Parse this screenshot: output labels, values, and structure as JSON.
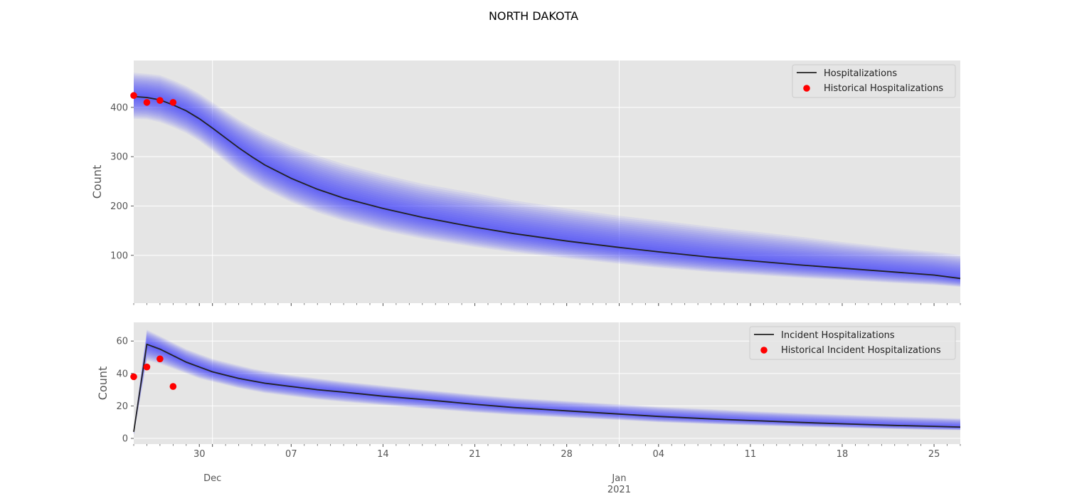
{
  "figure": {
    "suptitle": "NORTH DAKOTA"
  },
  "style": {
    "panel_bg": "#e5e5e5",
    "band_color": "#3333ff",
    "median_color": "#222222",
    "historical_color": "#ff0000",
    "tick_color": "#555555"
  },
  "x_axis": {
    "range": [
      "2020-11-25",
      "2021-01-27"
    ],
    "major_ticks": [
      {
        "date": "2020-11-30",
        "label": "30"
      },
      {
        "date": "2020-12-07",
        "label": "07"
      },
      {
        "date": "2020-12-14",
        "label": "14"
      },
      {
        "date": "2020-12-21",
        "label": "21"
      },
      {
        "date": "2020-12-28",
        "label": "28"
      },
      {
        "date": "2021-01-04",
        "label": "04"
      },
      {
        "date": "2021-01-11",
        "label": "11"
      },
      {
        "date": "2021-01-18",
        "label": "18"
      },
      {
        "date": "2021-01-25",
        "label": "25"
      }
    ],
    "month_labels": [
      {
        "date": "2020-12-01",
        "label": "Dec"
      },
      {
        "date": "2021-01-01",
        "label": "Jan",
        "year": "2021"
      }
    ]
  },
  "chart_data": [
    {
      "type": "line",
      "ylabel": "Count",
      "ylim": [
        3,
        495
      ],
      "yticks": [
        100,
        200,
        300,
        400
      ],
      "grid": true,
      "legend_position": "top-right",
      "legend": [
        "Hospitalizations",
        "Historical Hospitalizations"
      ],
      "x": [
        "2020-11-25",
        "2020-11-26",
        "2020-11-27",
        "2020-11-28",
        "2020-11-29",
        "2020-11-30",
        "2020-12-01",
        "2020-12-02",
        "2020-12-03",
        "2020-12-04",
        "2020-12-05",
        "2020-12-07",
        "2020-12-09",
        "2020-12-11",
        "2020-12-14",
        "2020-12-17",
        "2020-12-21",
        "2020-12-24",
        "2020-12-28",
        "2021-01-01",
        "2021-01-04",
        "2021-01-08",
        "2021-01-11",
        "2021-01-15",
        "2021-01-18",
        "2021-01-22",
        "2021-01-25",
        "2021-01-27"
      ],
      "series": [
        {
          "name": "Hospitalizations",
          "values": [
            422,
            420,
            415,
            405,
            393,
            377,
            358,
            338,
            318,
            300,
            283,
            256,
            234,
            216,
            195,
            177,
            157,
            144,
            129,
            116,
            107,
            96,
            89,
            80,
            74,
            66,
            60,
            53
          ]
        }
      ],
      "bands": {
        "low": [
          377,
          376,
          370,
          360,
          348,
          332,
          312,
          290,
          268,
          250,
          234,
          208,
          187,
          170,
          150,
          134,
          117,
          106,
          94,
          83,
          75,
          66,
          61,
          54,
          50,
          44,
          40,
          36
        ],
        "high": [
          470,
          468,
          465,
          455,
          443,
          428,
          410,
          392,
          375,
          360,
          346,
          322,
          302,
          285,
          264,
          245,
          226,
          211,
          195,
          180,
          171,
          158,
          149,
          137,
          127,
          115,
          107,
          101
        ]
      },
      "historical": {
        "name": "Historical Hospitalizations",
        "x": [
          "2020-11-25",
          "2020-11-26",
          "2020-11-27",
          "2020-11-28"
        ],
        "y": [
          424,
          410,
          414,
          410
        ]
      }
    },
    {
      "type": "line",
      "ylabel": "Count",
      "ylim": [
        -3.5,
        71.5
      ],
      "yticks": [
        0,
        20,
        40,
        60
      ],
      "grid": true,
      "legend_position": "top-right",
      "legend": [
        "Incident Hospitalizations",
        "Historical Incident Hospitalizations"
      ],
      "x": [
        "2020-11-25",
        "2020-11-26",
        "2020-11-27",
        "2020-11-28",
        "2020-11-29",
        "2020-11-30",
        "2020-12-01",
        "2020-12-02",
        "2020-12-03",
        "2020-12-04",
        "2020-12-05",
        "2020-12-07",
        "2020-12-09",
        "2020-12-11",
        "2020-12-14",
        "2020-12-17",
        "2020-12-21",
        "2020-12-24",
        "2020-12-28",
        "2021-01-01",
        "2021-01-04",
        "2021-01-08",
        "2021-01-11",
        "2021-01-15",
        "2021-01-18",
        "2021-01-22",
        "2021-01-25",
        "2021-01-27"
      ],
      "series": [
        {
          "name": "Incident Hospitalizations",
          "values": [
            4,
            58,
            55,
            51,
            47,
            44,
            41,
            39,
            37,
            35.5,
            34,
            32,
            30,
            28.5,
            26,
            24,
            21,
            19,
            17,
            15,
            13.5,
            12,
            11,
            9.8,
            9,
            8,
            7.4,
            7
          ]
        }
      ],
      "bands": {
        "low": [
          2,
          48,
          46,
          43,
          40,
          37,
          35,
          33,
          31,
          29.5,
          28,
          26,
          24,
          22.5,
          20.5,
          18.5,
          16,
          14.5,
          12.8,
          11.3,
          10,
          8.8,
          8,
          7.1,
          6.5,
          5.7,
          5.2,
          5
        ]
      },
      "bands_high": [
        6,
        67,
        63,
        59,
        55,
        52,
        49,
        47,
        45,
        43,
        41.5,
        39,
        37,
        35,
        32.5,
        30,
        27,
        25,
        23,
        21,
        19.5,
        18,
        16.8,
        15.5,
        14.6,
        13.5,
        12.8,
        12.3
      ],
      "historical": {
        "name": "Historical Incident Hospitalizations",
        "x": [
          "2020-11-25",
          "2020-11-26",
          "2020-11-27",
          "2020-11-28"
        ],
        "y": [
          38,
          44,
          49,
          32
        ]
      }
    }
  ]
}
